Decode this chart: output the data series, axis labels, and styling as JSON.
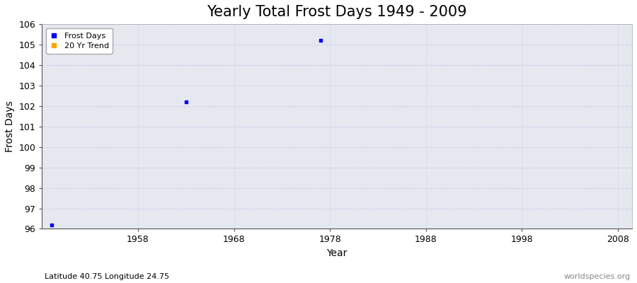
{
  "title": "Yearly Total Frost Days 1949 - 2009",
  "xlabel": "Year",
  "ylabel": "Frost Days",
  "subtitle": "Latitude 40.75 Longitude 24.75",
  "watermark": "worldspecies.org",
  "xlim": [
    1948,
    2009.5
  ],
  "ylim": [
    96,
    106
  ],
  "yticks": [
    96,
    97,
    98,
    99,
    100,
    101,
    102,
    103,
    104,
    105,
    106
  ],
  "xticks": [
    1958,
    1968,
    1978,
    1988,
    1998,
    2008
  ],
  "frost_days_years": [
    1949,
    1963,
    1977
  ],
  "frost_days_values": [
    96.2,
    102.2,
    105.2
  ],
  "point_color": "#0000ff",
  "trend_color": "#ffa500",
  "bg_color": "#e6e8f0",
  "grid_color": "#d0d4e8",
  "legend_frost_label": "Frost Days",
  "legend_trend_label": "20 Yr Trend",
  "title_fontsize": 15,
  "axis_label_fontsize": 10,
  "tick_fontsize": 9,
  "subtitle_fontsize": 8,
  "watermark_fontsize": 8
}
